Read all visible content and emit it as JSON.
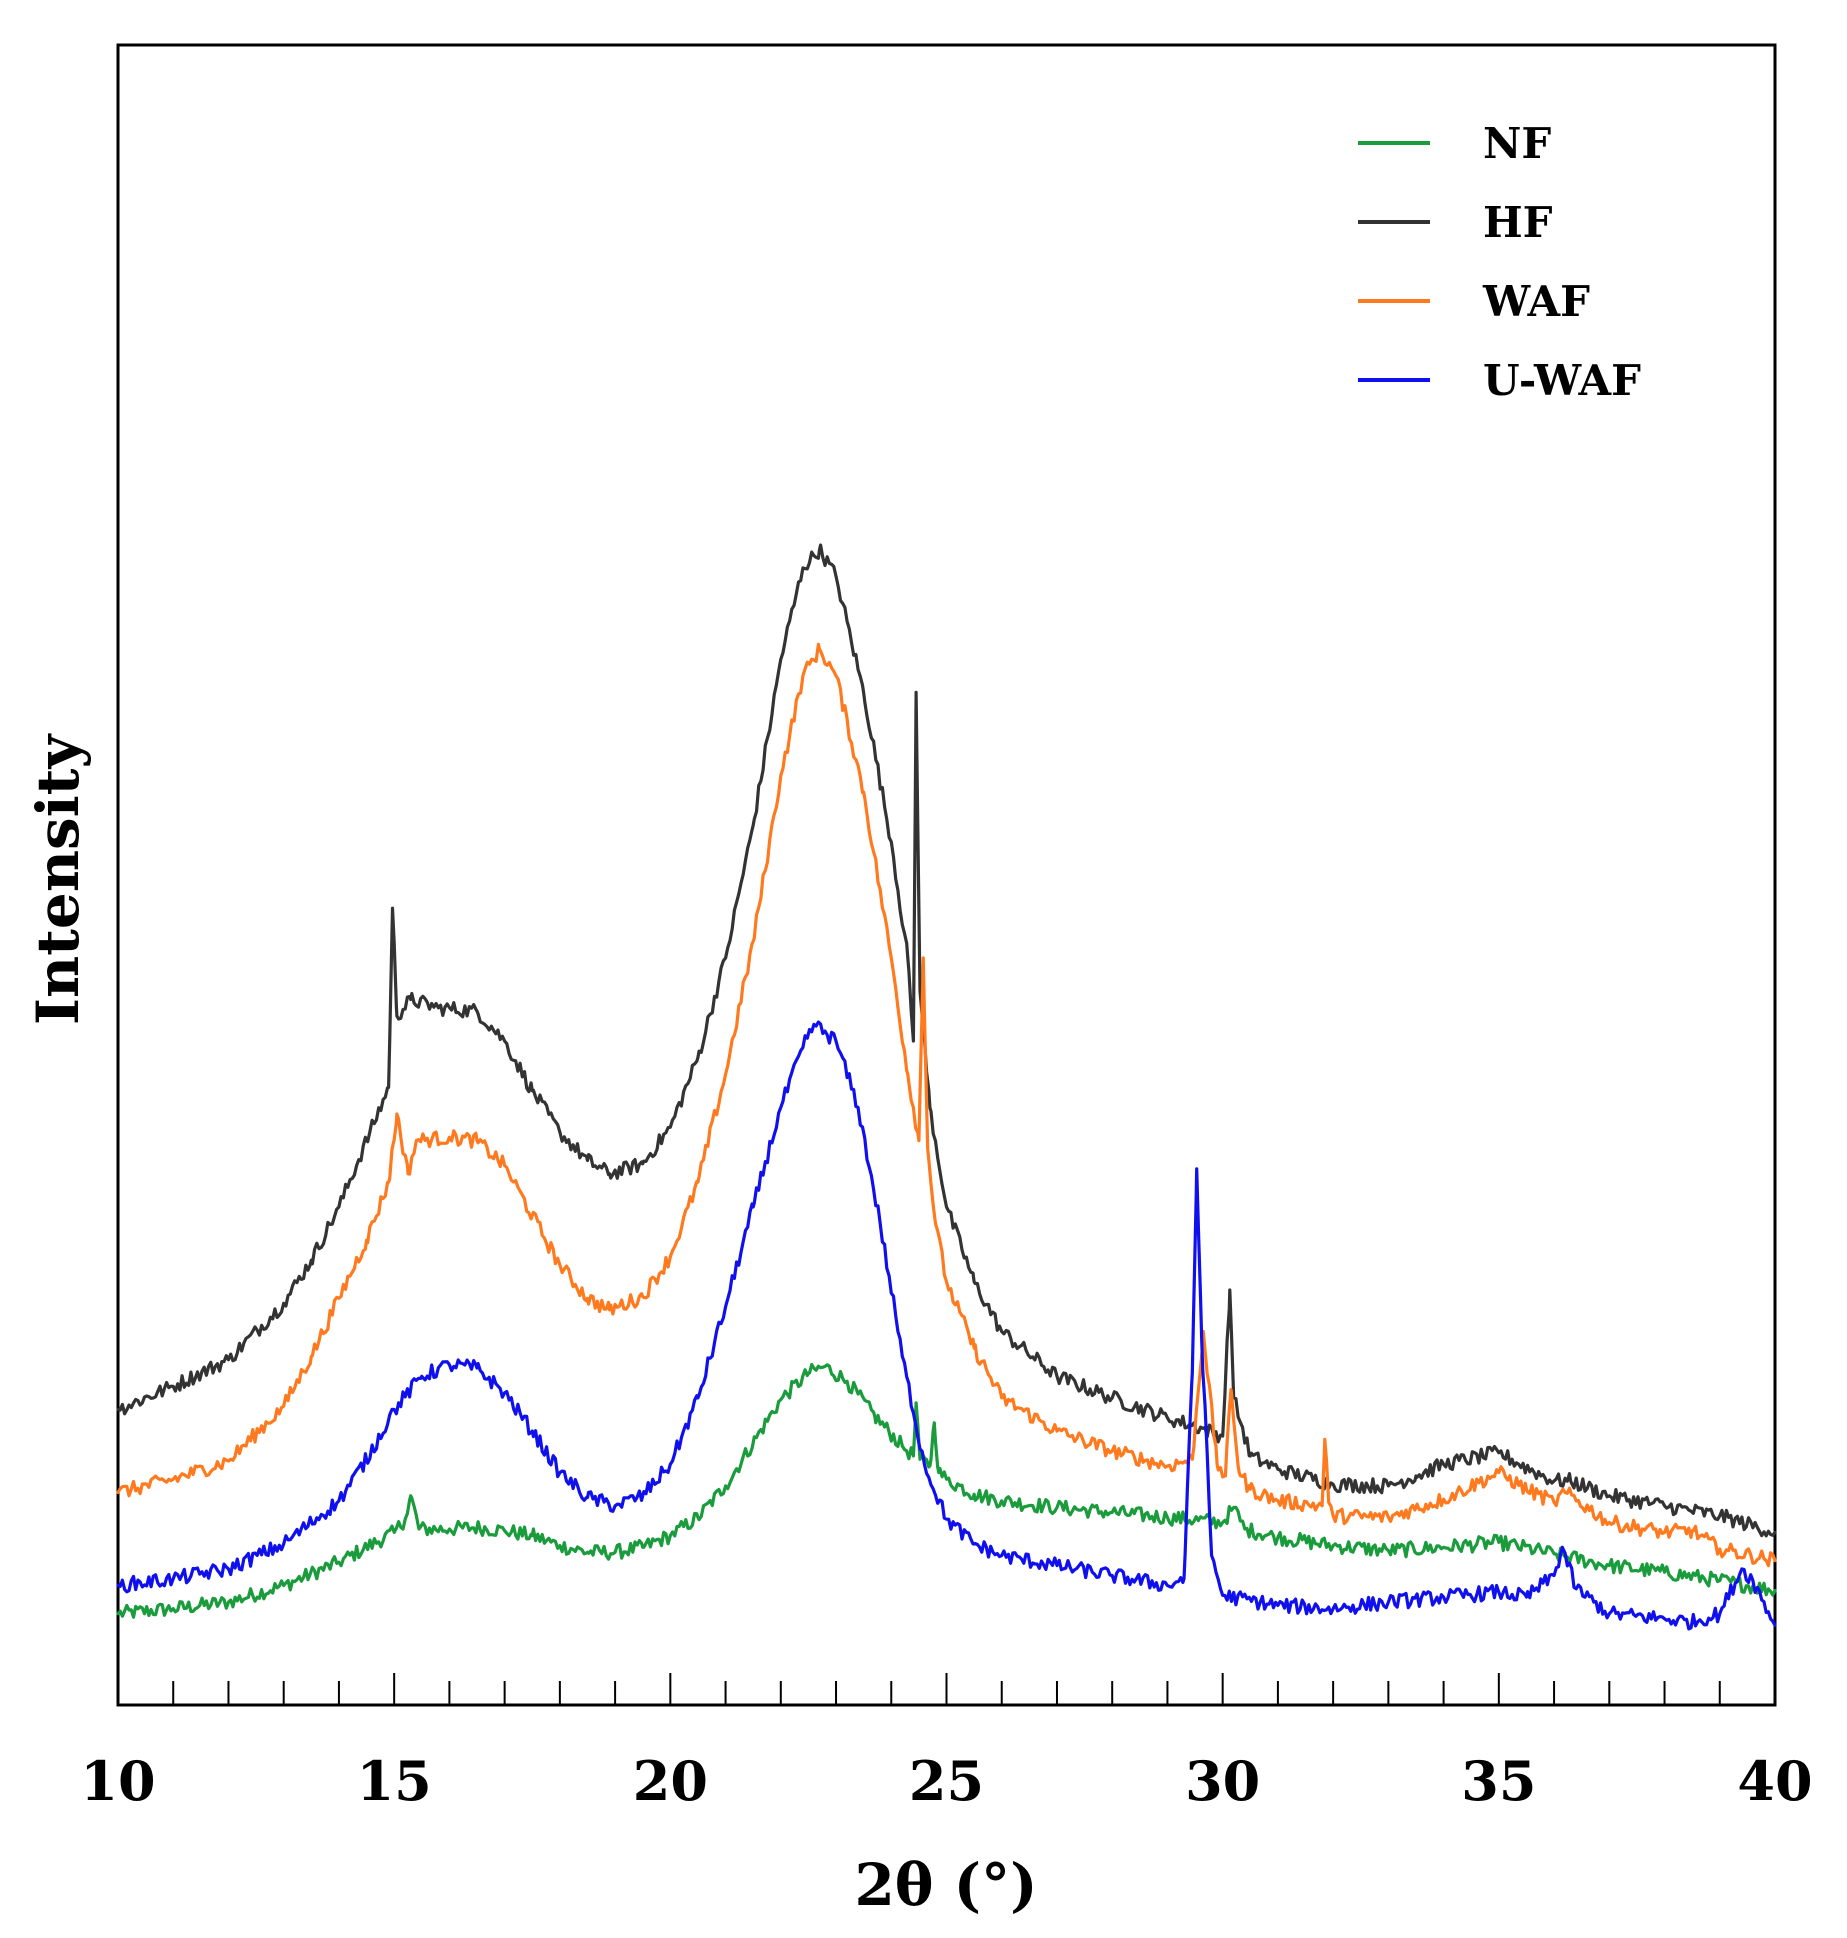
{
  "chart_data": {
    "type": "line",
    "title": "",
    "xlabel": "2θ (°)",
    "ylabel": "Intensity",
    "xlim": [
      10,
      40
    ],
    "ylim": [
      0,
      100
    ],
    "x_ticks": [
      10,
      15,
      20,
      25,
      30,
      35,
      40
    ],
    "x_tick_labels": [
      "10",
      "15",
      "20",
      "25",
      "30",
      "35",
      "40"
    ],
    "minor_tick_step": 1,
    "y_ticks_shown": false,
    "grid": false,
    "legend_position": "top-right",
    "series": [
      {
        "name": "NF",
        "color": "#1a9b3c",
        "points": [
          [
            10,
            5.5
          ],
          [
            11,
            5.8
          ],
          [
            12,
            6.2
          ],
          [
            13,
            7.2
          ],
          [
            14,
            8.6
          ],
          [
            15,
            10.4
          ],
          [
            15.2,
            11.2
          ],
          [
            15.3,
            12.6
          ],
          [
            15.45,
            10.6
          ],
          [
            16,
            10.6
          ],
          [
            16.5,
            10.7
          ],
          [
            17,
            10.5
          ],
          [
            17.5,
            10.2
          ],
          [
            18,
            9.6
          ],
          [
            18.5,
            9.2
          ],
          [
            19,
            9.2
          ],
          [
            19.5,
            9.5
          ],
          [
            20,
            10.2
          ],
          [
            20.5,
            11.3
          ],
          [
            21,
            13.2
          ],
          [
            21.5,
            15.8
          ],
          [
            22,
            18.4
          ],
          [
            22.5,
            20.0
          ],
          [
            22.8,
            20.4
          ],
          [
            23.2,
            19.5
          ],
          [
            23.7,
            17.4
          ],
          [
            24.2,
            15.6
          ],
          [
            24.4,
            15.0
          ],
          [
            24.45,
            18.2
          ],
          [
            24.52,
            14.8
          ],
          [
            24.7,
            14.4
          ],
          [
            24.78,
            17.0
          ],
          [
            24.86,
            14.0
          ],
          [
            25,
            13.6
          ],
          [
            25.5,
            12.7
          ],
          [
            26,
            12.3
          ],
          [
            27,
            11.9
          ],
          [
            28,
            11.6
          ],
          [
            29,
            11.3
          ],
          [
            30,
            11.0
          ],
          [
            30.2,
            11.9
          ],
          [
            30.4,
            10.6
          ],
          [
            31,
            10.1
          ],
          [
            32,
            9.6
          ],
          [
            33,
            9.3
          ],
          [
            34,
            9.5
          ],
          [
            35,
            9.8
          ],
          [
            36,
            9.1
          ],
          [
            37,
            8.4
          ],
          [
            38,
            8.0
          ],
          [
            39,
            7.5
          ],
          [
            40,
            6.9
          ]
        ]
      },
      {
        "name": "HF",
        "color": "#333333",
        "points": [
          [
            10,
            17.8
          ],
          [
            11,
            19.2
          ],
          [
            12,
            20.8
          ],
          [
            13,
            24.2
          ],
          [
            13.5,
            26.8
          ],
          [
            14,
            30.0
          ],
          [
            14.5,
            34.0
          ],
          [
            14.9,
            37.2
          ],
          [
            14.97,
            48.0
          ],
          [
            15.05,
            41.5
          ],
          [
            15.3,
            42.5
          ],
          [
            15.8,
            42.0
          ],
          [
            16.5,
            41.8
          ],
          [
            17,
            40.0
          ],
          [
            17.5,
            37.0
          ],
          [
            18,
            34.5
          ],
          [
            18.5,
            32.8
          ],
          [
            18.9,
            32.0
          ],
          [
            19.5,
            32.6
          ],
          [
            20,
            34.8
          ],
          [
            20.5,
            39.0
          ],
          [
            21,
            45.0
          ],
          [
            21.5,
            53.0
          ],
          [
            22,
            63.0
          ],
          [
            22.4,
            68.5
          ],
          [
            22.7,
            69.6
          ],
          [
            23.0,
            68.0
          ],
          [
            23.5,
            61.0
          ],
          [
            24.0,
            52.0
          ],
          [
            24.3,
            45.0
          ],
          [
            24.4,
            40.0
          ],
          [
            24.45,
            61.0
          ],
          [
            24.52,
            43.0
          ],
          [
            24.7,
            36.0
          ],
          [
            25,
            30.0
          ],
          [
            25.5,
            25.5
          ],
          [
            26,
            22.5
          ],
          [
            27,
            19.8
          ],
          [
            28,
            18.5
          ],
          [
            29,
            17.3
          ],
          [
            29.5,
            16.8
          ],
          [
            30,
            16.2
          ],
          [
            30.13,
            25.0
          ],
          [
            30.2,
            18.5
          ],
          [
            30.5,
            15.0
          ],
          [
            31,
            14.2
          ],
          [
            32,
            13.3
          ],
          [
            33,
            13.2
          ],
          [
            33.5,
            13.8
          ],
          [
            34,
            14.5
          ],
          [
            35,
            15.2
          ],
          [
            35.5,
            14.3
          ],
          [
            36,
            13.5
          ],
          [
            36.3,
            13.5
          ],
          [
            37,
            12.6
          ],
          [
            38,
            12.0
          ],
          [
            39,
            11.4
          ],
          [
            40,
            10.4
          ]
        ]
      },
      {
        "name": "WAF",
        "color": "#ff7a1f",
        "points": [
          [
            10,
            12.8
          ],
          [
            11,
            13.6
          ],
          [
            12,
            14.7
          ],
          [
            13,
            18.0
          ],
          [
            13.5,
            21.0
          ],
          [
            14,
            24.5
          ],
          [
            14.5,
            28.0
          ],
          [
            14.9,
            31.5
          ],
          [
            15.05,
            35.6
          ],
          [
            15.25,
            32.0
          ],
          [
            15.4,
            34.0
          ],
          [
            16,
            34.2
          ],
          [
            16.5,
            34.0
          ],
          [
            17,
            32.5
          ],
          [
            17.5,
            29.5
          ],
          [
            18,
            26.5
          ],
          [
            18.5,
            24.5
          ],
          [
            18.9,
            23.8
          ],
          [
            19.5,
            24.6
          ],
          [
            20,
            27.0
          ],
          [
            20.5,
            31.5
          ],
          [
            21,
            38.0
          ],
          [
            21.5,
            46.0
          ],
          [
            22,
            56.0
          ],
          [
            22.4,
            62.0
          ],
          [
            22.7,
            63.6
          ],
          [
            23.0,
            62.0
          ],
          [
            23.5,
            55.0
          ],
          [
            24.0,
            45.0
          ],
          [
            24.3,
            38.0
          ],
          [
            24.5,
            34.0
          ],
          [
            24.58,
            45.0
          ],
          [
            24.66,
            33.5
          ],
          [
            24.8,
            29.0
          ],
          [
            25,
            25.5
          ],
          [
            25.5,
            21.5
          ],
          [
            26,
            18.5
          ],
          [
            27,
            16.5
          ],
          [
            28,
            15.3
          ],
          [
            29,
            14.4
          ],
          [
            29.45,
            14.8
          ],
          [
            29.65,
            22.5
          ],
          [
            29.9,
            14.5
          ],
          [
            30.05,
            13.8
          ],
          [
            30.15,
            19.0
          ],
          [
            30.3,
            14.0
          ],
          [
            30.5,
            13.0
          ],
          [
            31,
            12.3
          ],
          [
            31.8,
            12.0
          ],
          [
            31.85,
            16.0
          ],
          [
            31.92,
            12.2
          ],
          [
            32,
            11.4
          ],
          [
            33,
            11.3
          ],
          [
            34,
            12.4
          ],
          [
            35,
            14.0
          ],
          [
            35.5,
            13.0
          ],
          [
            36,
            12.2
          ],
          [
            36.2,
            12.8
          ],
          [
            37,
            11.0
          ],
          [
            38,
            10.4
          ],
          [
            38.5,
            10.5
          ],
          [
            39,
            9.4
          ],
          [
            40,
            8.7
          ]
        ]
      },
      {
        "name": "U-WAF",
        "color": "#1010ee",
        "points": [
          [
            10,
            7.2
          ],
          [
            11,
            7.6
          ],
          [
            12,
            8.2
          ],
          [
            13,
            9.7
          ],
          [
            14,
            12.3
          ],
          [
            14.5,
            14.8
          ],
          [
            15,
            17.8
          ],
          [
            15.5,
            19.8
          ],
          [
            16,
            20.5
          ],
          [
            16.5,
            20.3
          ],
          [
            17,
            18.8
          ],
          [
            17.5,
            16.5
          ],
          [
            18,
            14.0
          ],
          [
            18.5,
            12.5
          ],
          [
            19,
            12.0
          ],
          [
            19.5,
            12.6
          ],
          [
            20,
            14.5
          ],
          [
            20.5,
            18.5
          ],
          [
            21,
            24.0
          ],
          [
            21.5,
            30.0
          ],
          [
            22,
            36.0
          ],
          [
            22.4,
            39.6
          ],
          [
            22.6,
            41.0
          ],
          [
            23,
            40.0
          ],
          [
            23.4,
            36.0
          ],
          [
            23.8,
            29.0
          ],
          [
            24.2,
            21.0
          ],
          [
            24.6,
            14.5
          ],
          [
            25,
            11.2
          ],
          [
            25.5,
            9.7
          ],
          [
            26,
            9.0
          ],
          [
            27,
            8.4
          ],
          [
            28,
            7.8
          ],
          [
            29,
            7.2
          ],
          [
            29.3,
            7.6
          ],
          [
            29.45,
            20.0
          ],
          [
            29.53,
            32.3
          ],
          [
            29.62,
            22.0
          ],
          [
            29.8,
            9.0
          ],
          [
            30,
            6.6
          ],
          [
            31,
            6.0
          ],
          [
            32,
            5.8
          ],
          [
            33,
            6.2
          ],
          [
            34,
            6.5
          ],
          [
            35,
            6.8
          ],
          [
            35.5,
            6.5
          ],
          [
            36,
            7.8
          ],
          [
            36.15,
            9.5
          ],
          [
            36.4,
            7.0
          ],
          [
            37,
            5.5
          ],
          [
            38,
            5.2
          ],
          [
            38.5,
            5.0
          ],
          [
            39,
            5.5
          ],
          [
            39.4,
            8.2
          ],
          [
            39.6,
            7.5
          ],
          [
            40,
            4.8
          ]
        ]
      }
    ]
  }
}
